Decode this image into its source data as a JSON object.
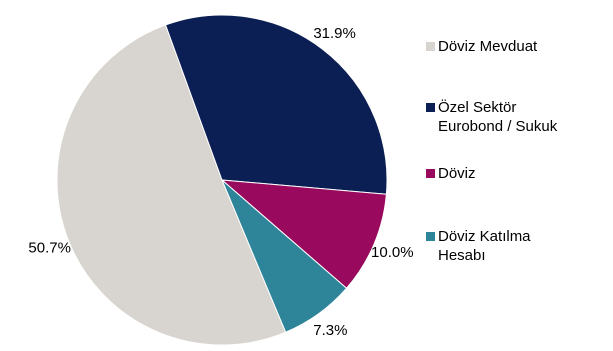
{
  "chart_data": {
    "type": "pie",
    "title": "",
    "legend_position": "right",
    "slices": [
      {
        "name": "Döviz Mevduat",
        "value": 50.7,
        "label": "50.7%",
        "color": "#d8d4cf"
      },
      {
        "name": "Özel Sektör\nEurobond / Sukuk",
        "value": 31.9,
        "label": "31.9%",
        "color": "#0c1f54"
      },
      {
        "name": "Döviz",
        "value": 10.0,
        "label": "10.0%",
        "color": "#990a5e"
      },
      {
        "name": "Döviz Katılma\nHesabı",
        "value": 7.3,
        "label": "7.3%",
        "color": "#2e8599"
      }
    ]
  }
}
